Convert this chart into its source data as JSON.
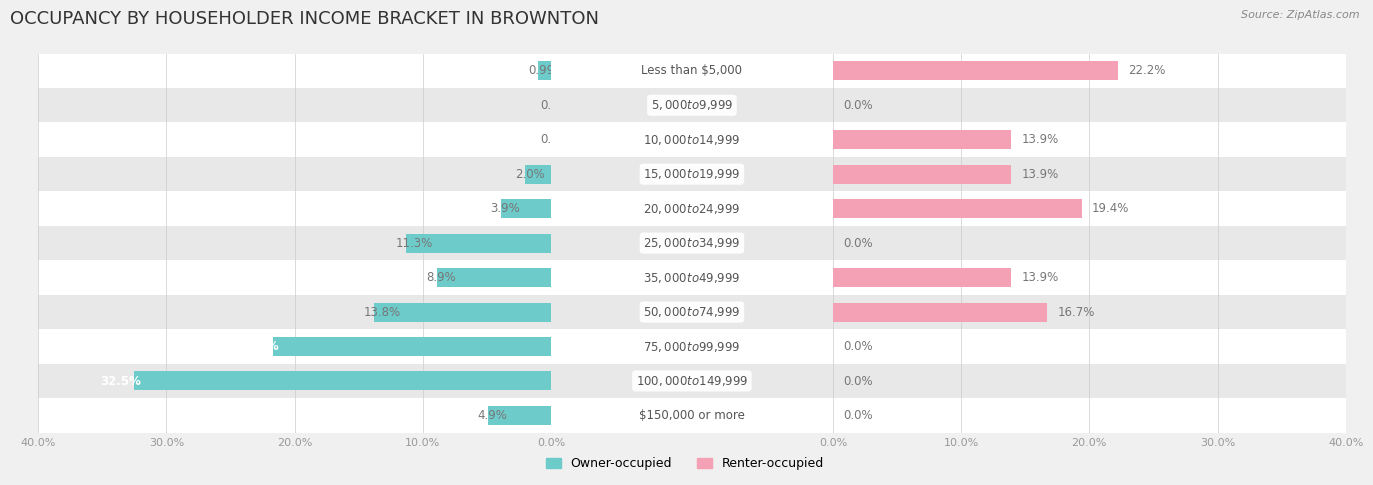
{
  "title": "OCCUPANCY BY HOUSEHOLDER INCOME BRACKET IN BROWNTON",
  "source": "Source: ZipAtlas.com",
  "categories": [
    "Less than $5,000",
    "$5,000 to $9,999",
    "$10,000 to $14,999",
    "$15,000 to $19,999",
    "$20,000 to $24,999",
    "$25,000 to $34,999",
    "$35,000 to $49,999",
    "$50,000 to $74,999",
    "$75,000 to $99,999",
    "$100,000 to $149,999",
    "$150,000 or more"
  ],
  "owner_values": [
    0.99,
    0.0,
    0.0,
    2.0,
    3.9,
    11.3,
    8.9,
    13.8,
    21.7,
    32.5,
    4.9
  ],
  "renter_values": [
    22.2,
    0.0,
    13.9,
    13.9,
    19.4,
    0.0,
    13.9,
    16.7,
    0.0,
    0.0,
    0.0
  ],
  "owner_color": "#6dcbca",
  "renter_color": "#f4a0b5",
  "bg_color": "#f0f0f0",
  "row_white": "#ffffff",
  "row_gray": "#e8e8e8",
  "axis_limit": 40.0,
  "bar_height": 0.55,
  "title_fontsize": 13,
  "label_fontsize": 8.5,
  "category_fontsize": 8.5,
  "legend_fontsize": 9,
  "source_fontsize": 8,
  "tick_label_fontsize": 8,
  "owner_label_color": "#777777",
  "renter_label_color": "#777777",
  "category_label_color": "#555555",
  "title_color": "#333333",
  "source_color": "#888888",
  "legend_label_color": "#555555"
}
